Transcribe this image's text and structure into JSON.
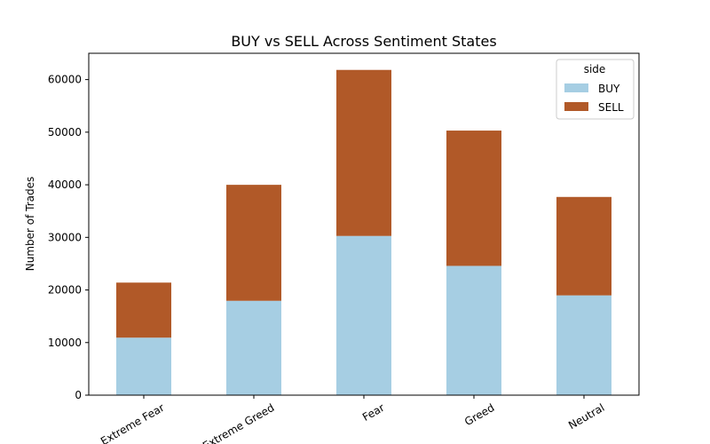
{
  "chart_data": {
    "type": "bar",
    "stacked": true,
    "title": "BUY vs SELL Across Sentiment States",
    "xlabel": "",
    "ylabel": "Number of Trades",
    "categories": [
      "Extreme Fear",
      "Extreme Greed",
      "Fear",
      "Greed",
      "Neutral"
    ],
    "series": [
      {
        "name": "BUY",
        "color": "#a6cee3",
        "values": [
          10935,
          17940,
          30270,
          24576,
          18969
        ]
      },
      {
        "name": "SELL",
        "color": "#b15928",
        "values": [
          10465,
          22052,
          31567,
          25727,
          18717
        ]
      }
    ],
    "ylim": [
      0,
      65000
    ],
    "yticks": [
      0,
      10000,
      20000,
      30000,
      40000,
      50000,
      60000
    ],
    "legend": {
      "title": "side",
      "position": "top-right"
    },
    "grid": false
  }
}
